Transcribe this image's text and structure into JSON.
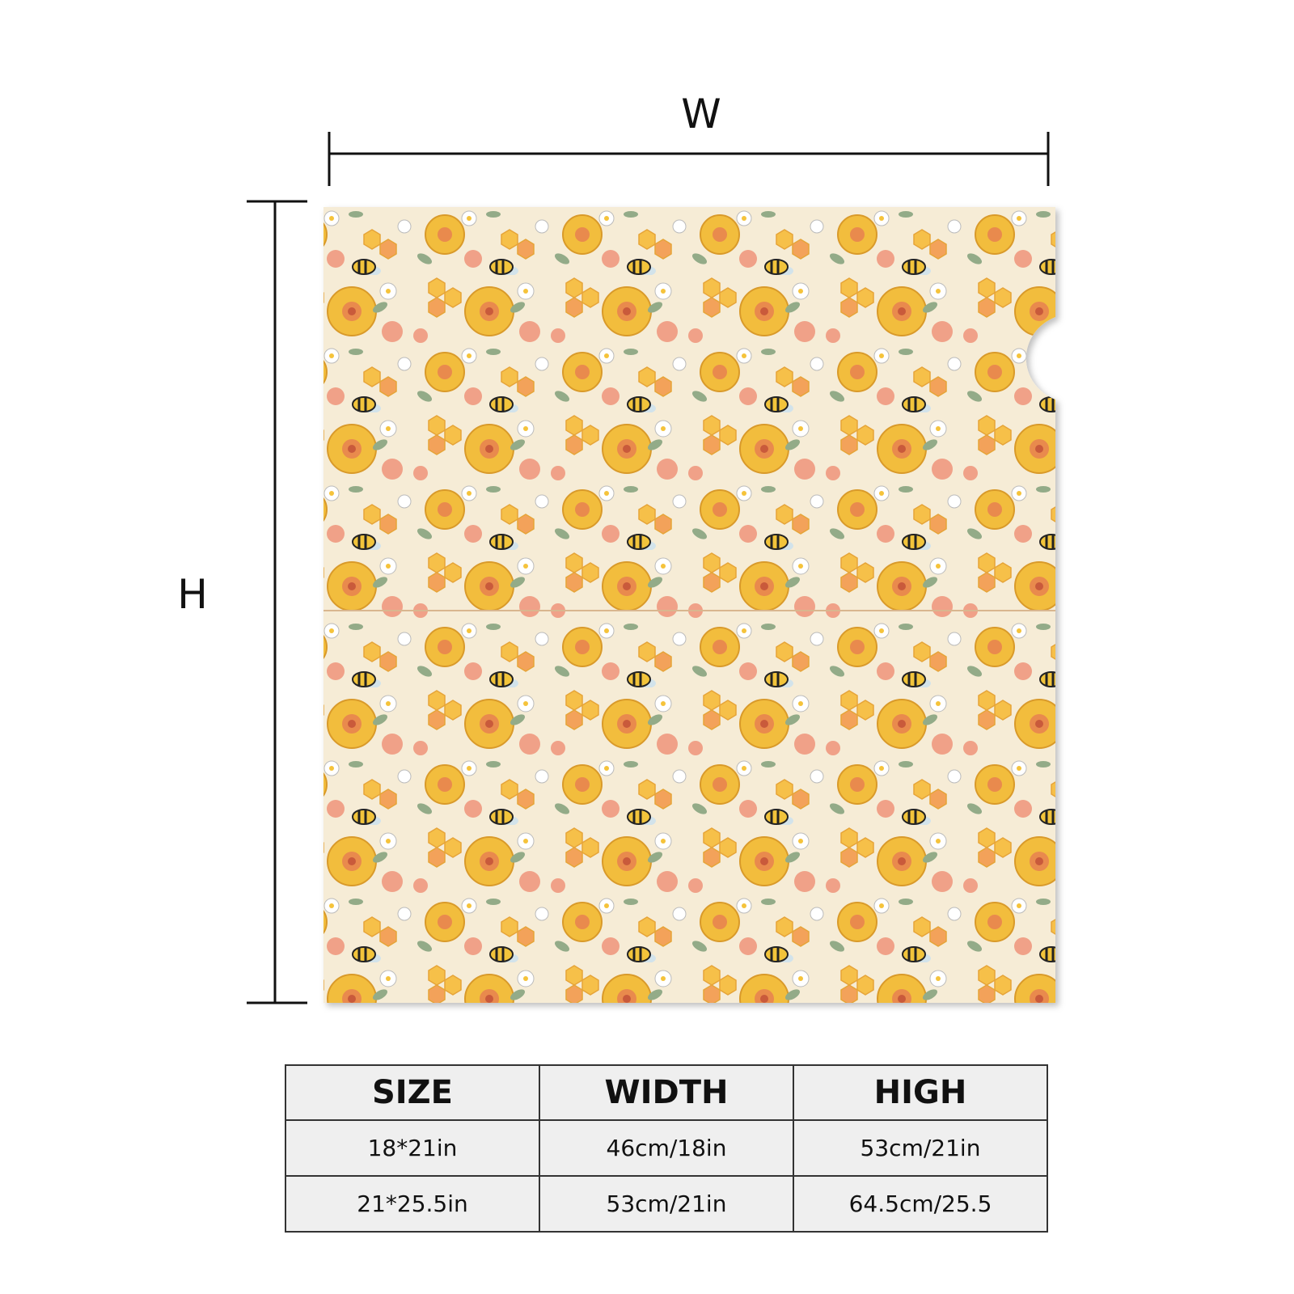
{
  "diagram": {
    "width_label": "W",
    "height_label": "H"
  },
  "table": {
    "header": [
      "SIZE",
      "WIDTH",
      "HIGH"
    ],
    "rows": [
      [
        "18*21in",
        "46cm/18in",
        "53cm/21in"
      ],
      [
        "21*25.5in",
        "53cm/21in",
        "64.5cm/25.5"
      ]
    ]
  }
}
